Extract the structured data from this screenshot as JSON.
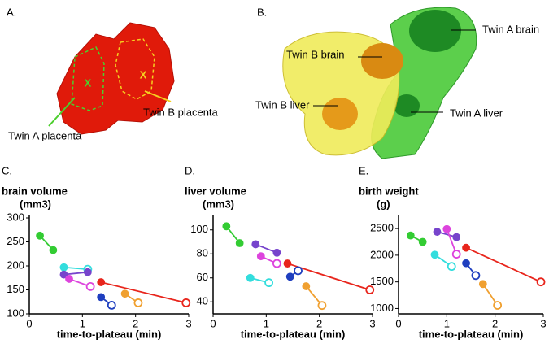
{
  "figure": {
    "panel_a": {
      "label": "A.",
      "marks": [
        "X",
        "X"
      ],
      "annotations": [
        "Twin A placenta",
        "Twin B placenta"
      ]
    },
    "panel_b": {
      "label": "B.",
      "annotations": [
        "Twin A brain",
        "Twin B brain",
        "Twin B liver",
        "Twin A liver"
      ]
    }
  },
  "chart_data": [
    {
      "type": "line",
      "panel": "C.",
      "ylabel": [
        "brain volume",
        "(mm3)"
      ],
      "xlabel": "time-to-plateau (min)",
      "xlim": [
        0,
        3
      ],
      "xticks": [
        0,
        1,
        2,
        3
      ],
      "ylim": [
        100,
        300
      ],
      "yticks": [
        100,
        150,
        200,
        250,
        300
      ],
      "series": [
        {
          "color": "#33cc33",
          "x": [
            0.2,
            0.45
          ],
          "values": [
            263,
            233
          ],
          "markers": [
            "filled",
            "filled"
          ]
        },
        {
          "color": "#33dddd",
          "x": [
            0.65,
            1.1
          ],
          "values": [
            197,
            193
          ],
          "markers": [
            "filled",
            "open"
          ]
        },
        {
          "color": "#7744cc",
          "x": [
            0.65,
            1.1
          ],
          "values": [
            182,
            187
          ],
          "markers": [
            "filled",
            "filled"
          ]
        },
        {
          "color": "#dd44dd",
          "x": [
            0.75,
            1.15
          ],
          "values": [
            173,
            157
          ],
          "markers": [
            "filled",
            "open"
          ]
        },
        {
          "color": "#e8251c",
          "x": [
            1.35,
            2.95
          ],
          "values": [
            166,
            123
          ],
          "markers": [
            "filled",
            "open"
          ]
        },
        {
          "color": "#1f3fbf",
          "x": [
            1.35,
            1.55
          ],
          "values": [
            135,
            118
          ],
          "markers": [
            "filled",
            "open"
          ]
        },
        {
          "color": "#f0a030",
          "x": [
            1.8,
            2.05
          ],
          "values": [
            142,
            123
          ],
          "markers": [
            "filled",
            "open"
          ]
        }
      ]
    },
    {
      "type": "line",
      "panel": "D.",
      "ylabel": [
        "liver volume",
        "(mm3)"
      ],
      "xlabel": "time-to-plateau (min)",
      "xlim": [
        0,
        3
      ],
      "xticks": [
        0,
        1,
        2,
        3
      ],
      "ylim": [
        30,
        110
      ],
      "yticks": [
        40,
        60,
        80,
        100
      ],
      "series": [
        {
          "color": "#33cc33",
          "x": [
            0.25,
            0.5
          ],
          "values": [
            103,
            89
          ],
          "markers": [
            "filled",
            "filled"
          ]
        },
        {
          "color": "#33dddd",
          "x": [
            0.7,
            1.05
          ],
          "values": [
            60,
            56
          ],
          "markers": [
            "filled",
            "open"
          ]
        },
        {
          "color": "#7744cc",
          "x": [
            0.8,
            1.2
          ],
          "values": [
            88,
            81
          ],
          "markers": [
            "filled",
            "filled"
          ]
        },
        {
          "color": "#dd44dd",
          "x": [
            0.9,
            1.2
          ],
          "values": [
            78,
            72
          ],
          "markers": [
            "filled",
            "open"
          ]
        },
        {
          "color": "#e8251c",
          "x": [
            1.4,
            2.95
          ],
          "values": [
            72,
            50
          ],
          "markers": [
            "filled",
            "open"
          ]
        },
        {
          "color": "#1f3fbf",
          "x": [
            1.45,
            1.6
          ],
          "values": [
            61,
            66
          ],
          "markers": [
            "filled",
            "open"
          ]
        },
        {
          "color": "#f0a030",
          "x": [
            1.75,
            2.05
          ],
          "values": [
            53,
            37
          ],
          "markers": [
            "filled",
            "open"
          ]
        }
      ]
    },
    {
      "type": "line",
      "panel": "E.",
      "ylabel": [
        "birth weight",
        "(g)"
      ],
      "xlabel": "time-to-plateau (min)",
      "xlim": [
        0,
        3
      ],
      "xticks": [
        0,
        1,
        2,
        3
      ],
      "ylim": [
        900,
        2700
      ],
      "yticks": [
        1000,
        1500,
        2000,
        2500
      ],
      "series": [
        {
          "color": "#33cc33",
          "x": [
            0.25,
            0.5
          ],
          "values": [
            2370,
            2250
          ],
          "markers": [
            "filled",
            "filled"
          ]
        },
        {
          "color": "#33dddd",
          "x": [
            0.75,
            1.1
          ],
          "values": [
            2010,
            1790
          ],
          "markers": [
            "filled",
            "open"
          ]
        },
        {
          "color": "#7744cc",
          "x": [
            0.8,
            1.2
          ],
          "values": [
            2440,
            2340
          ],
          "markers": [
            "filled",
            "filled"
          ]
        },
        {
          "color": "#dd44dd",
          "x": [
            1.0,
            1.2
          ],
          "values": [
            2490,
            2020
          ],
          "markers": [
            "filled",
            "open"
          ]
        },
        {
          "color": "#e8251c",
          "x": [
            1.4,
            2.95
          ],
          "values": [
            2140,
            1500
          ],
          "markers": [
            "filled",
            "open"
          ]
        },
        {
          "color": "#1f3fbf",
          "x": [
            1.4,
            1.6
          ],
          "values": [
            1850,
            1620
          ],
          "markers": [
            "filled",
            "open"
          ]
        },
        {
          "color": "#f0a030",
          "x": [
            1.75,
            2.05
          ],
          "values": [
            1460,
            1060
          ],
          "markers": [
            "filled",
            "open"
          ]
        }
      ]
    }
  ]
}
